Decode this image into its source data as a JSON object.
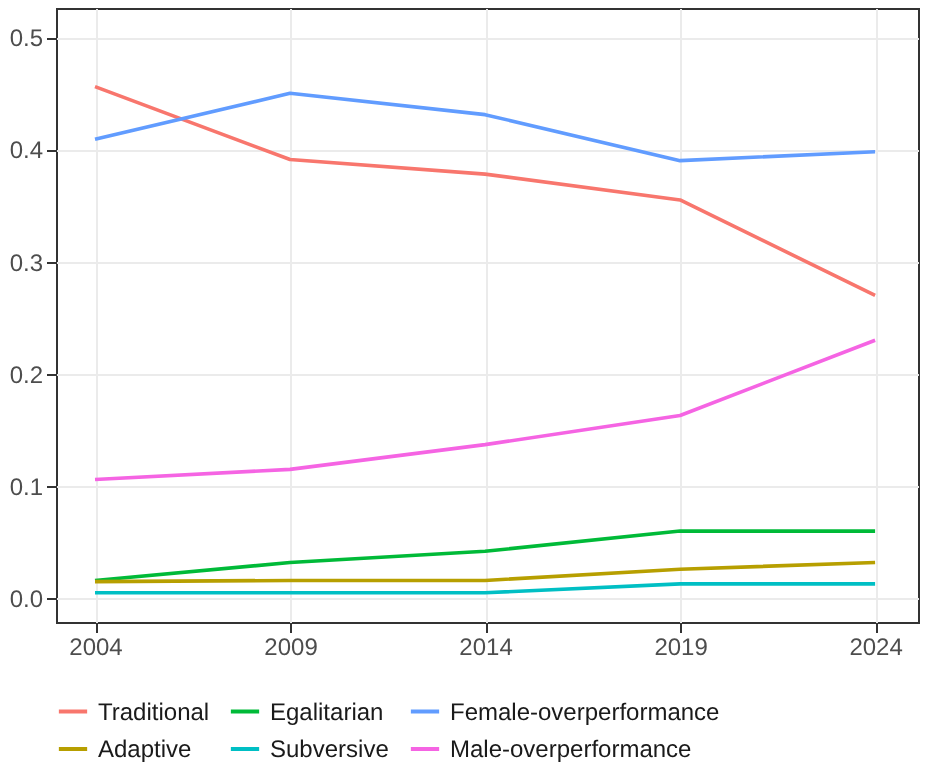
{
  "chart_data": {
    "type": "line",
    "x": [
      2004,
      2009,
      2014,
      2019,
      2024
    ],
    "xlim": [
      2003,
      2025.1
    ],
    "xticks": [
      2004,
      2009,
      2014,
      2019,
      2024
    ],
    "ylim": [
      -0.021,
      0.526
    ],
    "yticks": [
      {
        "value": 0,
        "label": "0.0"
      },
      0.1,
      0.2,
      0.3,
      0.4,
      0.5
    ],
    "grid": true,
    "legend": "bottom",
    "line_style": "solid",
    "series": [
      {
        "name": "Traditional",
        "color": "#f8766d",
        "values": [
          0.456,
          0.391,
          0.378,
          0.355,
          0.27
        ]
      },
      {
        "name": "Egalitarian",
        "color": "#00ba38",
        "values": [
          0.016,
          0.032,
          0.042,
          0.06,
          0.06
        ]
      },
      {
        "name": "Female-overperformance",
        "color": "#619cff",
        "values": [
          0.409,
          0.45,
          0.431,
          0.39,
          0.398
        ]
      },
      {
        "name": "Adaptive",
        "color": "#b79f00",
        "values": [
          0.015,
          0.016,
          0.016,
          0.026,
          0.032
        ]
      },
      {
        "name": "Subversive",
        "color": "#00bfc4",
        "values": [
          0.005,
          0.005,
          0.005,
          0.013,
          0.013
        ]
      },
      {
        "name": "Male-overperformance",
        "color": "#f564e3",
        "values": [
          0.106,
          0.115,
          0.137,
          0.163,
          0.23
        ]
      }
    ]
  }
}
